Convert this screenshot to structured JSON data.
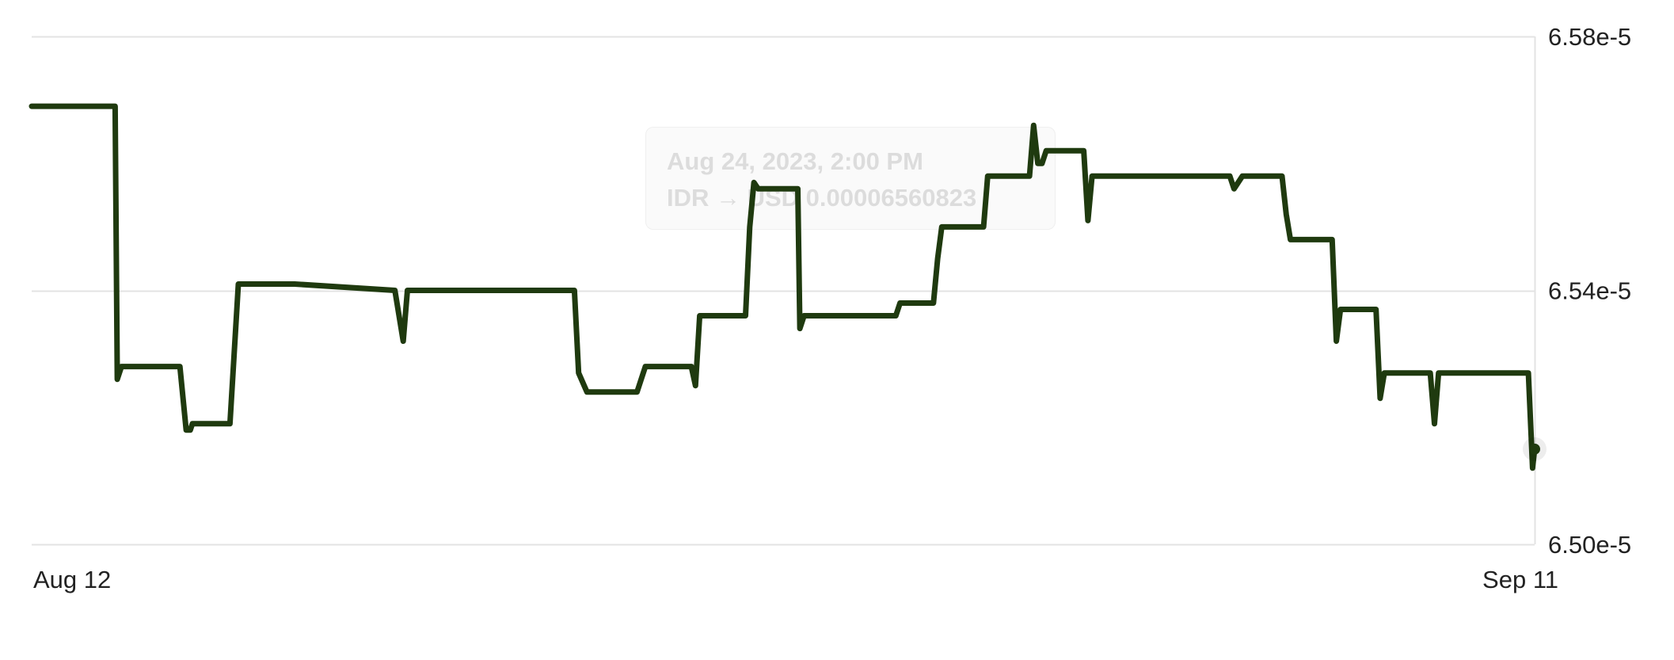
{
  "chart_data": {
    "type": "line",
    "series": [
      {
        "color": "#1f3a0f",
        "x": [
          "2023-08-12T00:00",
          "2023-08-13T16:00",
          "2023-08-13T17:00",
          "2023-08-13T19:00",
          "2023-08-14T00:00",
          "2023-08-14T23:00",
          "2023-08-15T02:00",
          "2023-08-15T04:00",
          "2023-08-15T05:00",
          "2023-08-15T23:00",
          "2023-08-16T01:00",
          "2023-08-16T03:00",
          "2023-08-16T05:00",
          "2023-08-17T06:00",
          "2023-08-19T06:00",
          "2023-08-19T10:00",
          "2023-08-19T12:00",
          "2023-08-19T14:00",
          "2023-08-20T00:00",
          "2023-08-22T20:00",
          "2023-08-22T22:00",
          "2023-08-23T02:00",
          "2023-08-23T05:00",
          "2023-08-24T02:00",
          "2023-08-24T06:00",
          "2023-08-24T08:00",
          "2023-08-24T12:00",
          "2023-08-25T04:00",
          "2023-08-25T06:00",
          "2023-08-25T08:00",
          "2023-08-26T06:00",
          "2023-08-26T08:00",
          "2023-08-26T10:00",
          "2023-08-26T12:00",
          "2023-08-26T14:00",
          "2023-08-27T07:00",
          "2023-08-27T08:00",
          "2023-08-27T10:00",
          "2023-08-29T06:00",
          "2023-08-29T08:00",
          "2023-08-29T10:00",
          "2023-08-30T00:00",
          "2023-08-30T02:00",
          "2023-08-30T04:00",
          "2023-08-31T00:00",
          "2023-08-31T02:00",
          "2023-08-31T06:00",
          "2023-08-31T22:00",
          "2023-09-01T00:00",
          "2023-09-01T02:00",
          "2023-09-01T04:00",
          "2023-09-01T06:00",
          "2023-09-01T08:00",
          "2023-09-02T00:00",
          "2023-09-02T02:00",
          "2023-09-02T04:00",
          "2023-09-02T06:00",
          "2023-09-02T10:00",
          "2023-09-04T22:00",
          "2023-09-05T00:00",
          "2023-09-05T04:00",
          "2023-09-05T23:00",
          "2023-09-06T01:00",
          "2023-09-06T03:00",
          "2023-09-06T04:00",
          "2023-09-06T23:00",
          "2023-09-07T01:00",
          "2023-09-07T03:00",
          "2023-09-07T05:00",
          "2023-09-07T20:00",
          "2023-09-07T22:00",
          "2023-09-08T00:00",
          "2023-09-08T02:00",
          "2023-09-08T22:00",
          "2023-09-09T00:00",
          "2023-09-09T02:00",
          "2023-09-09T04:00",
          "2023-09-10T21:00",
          "2023-09-10T23:00",
          "2023-09-11T00:00"
        ],
        "y": [
          6.569e-05,
          6.569e-05,
          6.526e-05,
          6.528e-05,
          6.528e-05,
          6.528e-05,
          6.518e-05,
          6.518e-05,
          6.519e-05,
          6.519e-05,
          6.53e-05,
          6.541e-05,
          6.541e-05,
          6.541e-05,
          6.54e-05,
          6.532e-05,
          6.54e-05,
          6.54e-05,
          6.54e-05,
          6.54e-05,
          6.527e-05,
          6.524e-05,
          6.524e-05,
          6.524e-05,
          6.528e-05,
          6.528e-05,
          6.528e-05,
          6.528e-05,
          6.525e-05,
          6.536e-05,
          6.536e-05,
          6.55e-05,
          6.557e-05,
          6.556e-05,
          6.556e-05,
          6.556e-05,
          6.534e-05,
          6.536e-05,
          6.536e-05,
          6.538e-05,
          6.538e-05,
          6.538e-05,
          6.545e-05,
          6.55e-05,
          6.55e-05,
          6.558e-05,
          6.558e-05,
          6.558e-05,
          6.566e-05,
          6.56e-05,
          6.56e-05,
          6.562e-05,
          6.562e-05,
          6.562e-05,
          6.551e-05,
          6.558e-05,
          6.558e-05,
          6.558e-05,
          6.558e-05,
          6.556e-05,
          6.558e-05,
          6.558e-05,
          6.552e-05,
          6.548e-05,
          6.548e-05,
          6.548e-05,
          6.532e-05,
          6.537e-05,
          6.537e-05,
          6.537e-05,
          6.523e-05,
          6.527e-05,
          6.527e-05,
          6.527e-05,
          6.519e-05,
          6.527e-05,
          6.527e-05,
          6.527e-05,
          6.512e-05,
          6.515e-05
        ]
      }
    ],
    "x_tick_labels": [
      "Aug 12",
      "Sep 11"
    ],
    "y_tick_labels": [
      "6.58e-5",
      "6.54e-5",
      "6.50e-5"
    ],
    "xlim": [
      "2023-08-12T00:00",
      "2023-09-11T00:00"
    ],
    "ylim": [
      6.5e-05,
      6.58e-05
    ],
    "grid": true,
    "y_axis_position": "right",
    "tooltip": {
      "line1": "Aug 24, 2023, 2:00 PM",
      "line2": "IDR → USD 0.00006560823"
    }
  }
}
